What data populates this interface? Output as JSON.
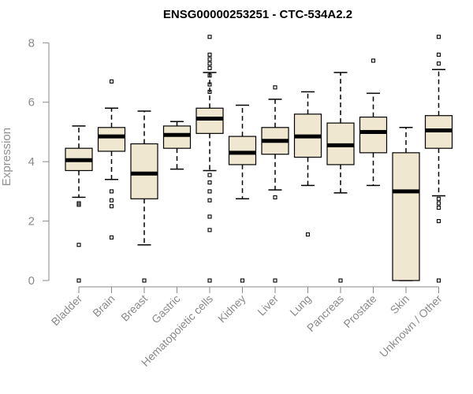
{
  "chart_data": {
    "type": "box",
    "title": "ENSG00000253251 - CTC-534A2.2",
    "xlabel": "",
    "ylabel": "Expression",
    "ylim": [
      0,
      8.3
    ],
    "yticks": [
      0,
      2,
      4,
      6,
      8
    ],
    "grid": false,
    "colors": {
      "box_fill": "#efe7cf",
      "box_stroke": "#000000",
      "axis": "#8a8a8a",
      "title": "#000000"
    },
    "series": [
      {
        "name": "Bladder",
        "min": 2.8,
        "q1": 3.7,
        "median": 4.05,
        "q3": 4.45,
        "max": 5.2,
        "outliers": [
          2.6,
          2.55,
          1.2,
          0.0
        ]
      },
      {
        "name": "Brain",
        "min": 3.4,
        "q1": 4.35,
        "median": 4.85,
        "q3": 5.15,
        "max": 5.8,
        "outliers": [
          6.7,
          3.0,
          2.7,
          2.5,
          1.45
        ]
      },
      {
        "name": "Breast",
        "min": 1.2,
        "q1": 2.75,
        "median": 3.6,
        "q3": 4.6,
        "max": 5.7,
        "outliers": [
          0.0
        ]
      },
      {
        "name": "Gastric",
        "min": 3.75,
        "q1": 4.45,
        "median": 4.9,
        "q3": 5.2,
        "max": 5.35,
        "outliers": []
      },
      {
        "name": "Hematopoietic cells",
        "min": 3.7,
        "q1": 4.95,
        "median": 5.45,
        "q3": 5.8,
        "max": 7.0,
        "outliers": [
          8.2,
          7.6,
          7.45,
          7.3,
          7.15,
          6.9,
          6.6,
          6.35,
          3.55,
          3.3,
          3.0,
          2.7,
          2.15,
          1.7,
          0.0
        ]
      },
      {
        "name": "Kidney",
        "min": 2.75,
        "q1": 3.9,
        "median": 4.3,
        "q3": 4.85,
        "max": 5.9,
        "outliers": [
          0.0
        ]
      },
      {
        "name": "Liver",
        "min": 3.05,
        "q1": 4.25,
        "median": 4.7,
        "q3": 5.15,
        "max": 6.1,
        "outliers": [
          6.5,
          2.8,
          0.0
        ]
      },
      {
        "name": "Lung",
        "min": 3.2,
        "q1": 4.15,
        "median": 4.85,
        "q3": 5.6,
        "max": 6.35,
        "outliers": [
          1.55
        ]
      },
      {
        "name": "Pancreas",
        "min": 2.95,
        "q1": 3.9,
        "median": 4.55,
        "q3": 5.3,
        "max": 7.0,
        "outliers": [
          0.0
        ]
      },
      {
        "name": "Prostate",
        "min": 3.2,
        "q1": 4.3,
        "median": 5.0,
        "q3": 5.5,
        "max": 6.3,
        "outliers": [
          7.4
        ]
      },
      {
        "name": "Skin",
        "min": 0.0,
        "q1": 0.0,
        "median": 3.0,
        "q3": 4.3,
        "max": 5.15,
        "outliers": []
      },
      {
        "name": "Unknown / Other",
        "min": 2.85,
        "q1": 4.45,
        "median": 5.05,
        "q3": 5.55,
        "max": 7.1,
        "outliers": [
          8.2,
          7.6,
          7.3,
          2.75,
          2.6,
          2.45,
          2.0,
          0.0
        ]
      }
    ]
  }
}
